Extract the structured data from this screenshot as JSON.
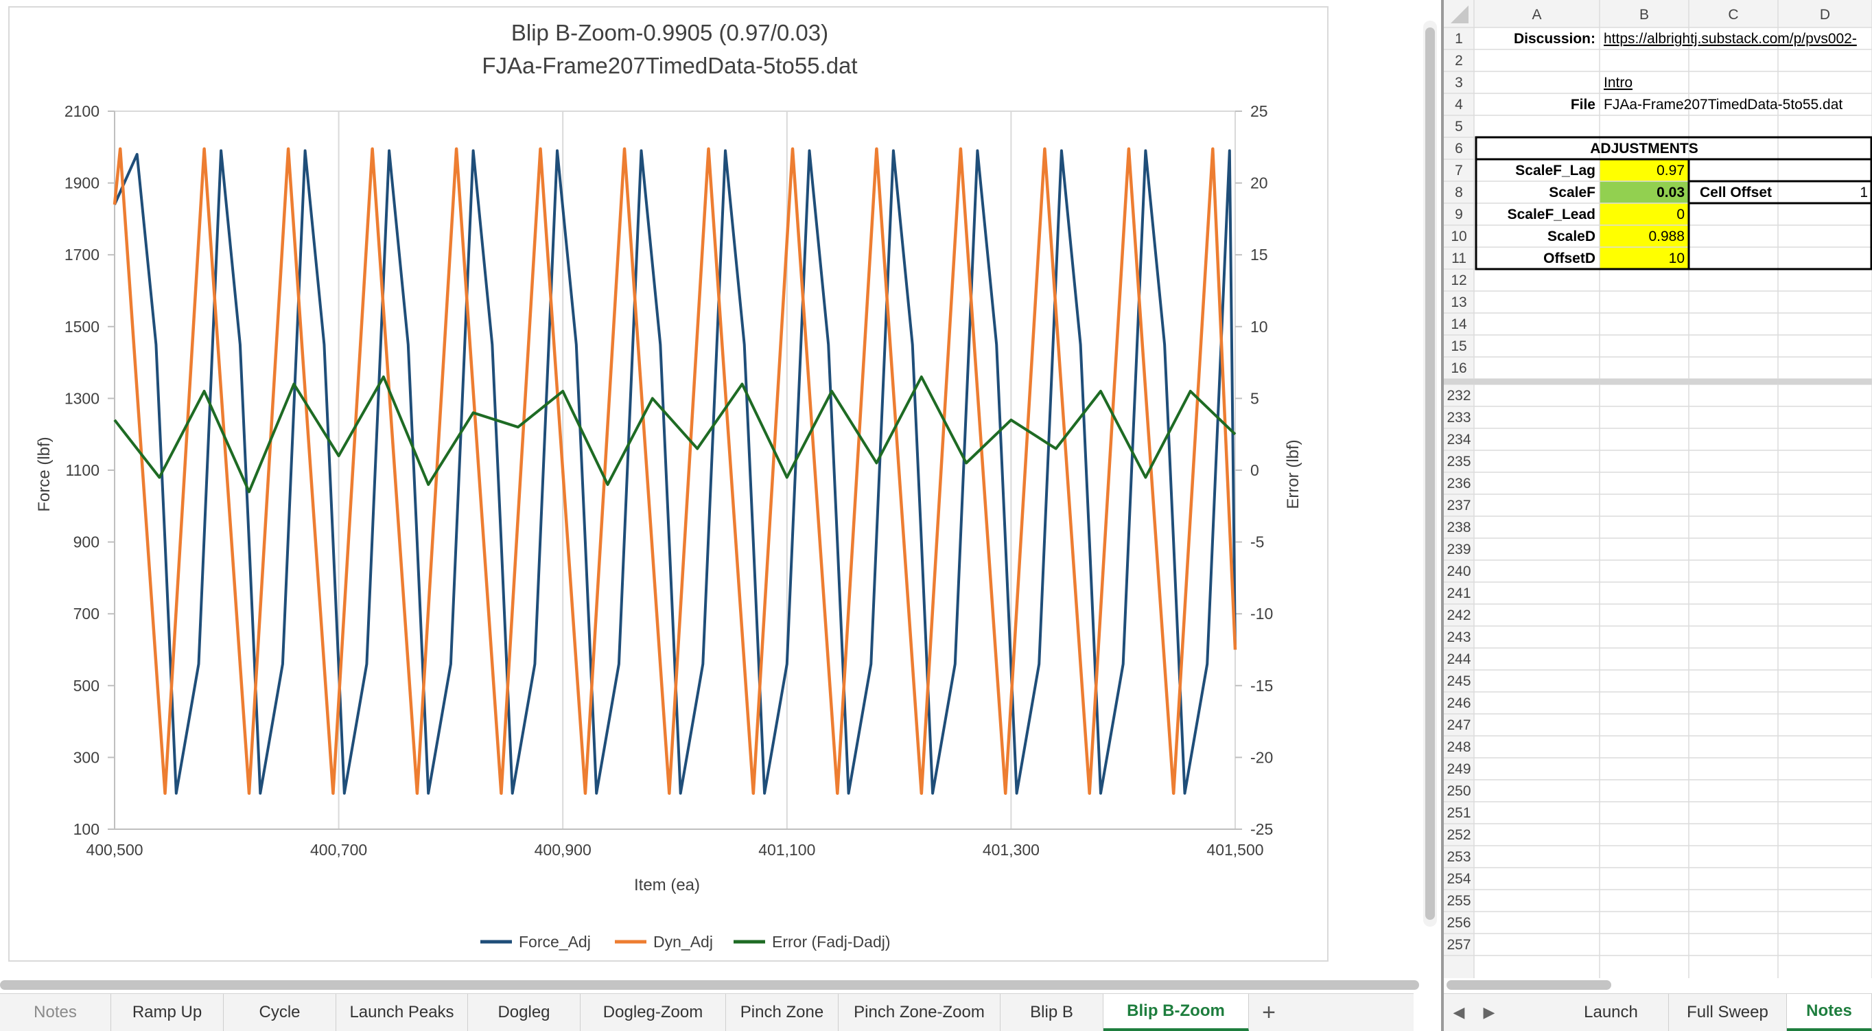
{
  "chart_data": {
    "type": "line",
    "title": "Blip B-Zoom-0.9905 (0.97/0.03)",
    "subtitle": "FJAa-Frame207TimedData-5to55.dat",
    "xlabel": "Item (ea)",
    "ylabel": "Force (lbf)",
    "y2label": "Error (lbf)",
    "xlim": [
      400500,
      401500
    ],
    "ylim": [
      100,
      2100
    ],
    "y2lim": [
      -25,
      25
    ],
    "x_ticks": [
      "400,500",
      "400,700",
      "400,900",
      "401,100",
      "401,300",
      "401,500"
    ],
    "y_ticks": [
      "2100",
      "1900",
      "1700",
      "1500",
      "1300",
      "1100",
      "900",
      "700",
      "500",
      "300",
      "100"
    ],
    "y2_ticks": [
      "25",
      "20",
      "15",
      "10",
      "5",
      "0",
      "-5",
      "-10",
      "-15",
      "-20",
      "-25"
    ],
    "grid": true,
    "legend_position": "bottom",
    "series": [
      {
        "name": "Force_Adj",
        "color": "#1f4e79",
        "axis": "left",
        "x": [
          400500,
          400520,
          400537,
          400545,
          400555,
          400575,
          400595,
          400612,
          400620,
          400630,
          400650,
          400670,
          400687,
          400695,
          400705,
          400725,
          400745,
          400762,
          400770,
          400780,
          400800,
          400820,
          400837,
          400845,
          400855,
          400875,
          400895,
          400912,
          400920,
          400930,
          400950,
          400970,
          400987,
          400995,
          401005,
          401025,
          401045,
          401062,
          401070,
          401080,
          401100,
          401120,
          401137,
          401145,
          401155,
          401175,
          401195,
          401212,
          401220,
          401230,
          401250,
          401270,
          401287,
          401295,
          401305,
          401325,
          401345,
          401362,
          401370,
          401380,
          401400,
          401420,
          401437,
          401445,
          401455,
          401475,
          401495,
          401500
        ],
        "y": [
          1840,
          1980,
          1450,
          900,
          200,
          560,
          1990,
          1450,
          900,
          200,
          560,
          1990,
          1450,
          900,
          200,
          560,
          1990,
          1450,
          900,
          200,
          560,
          1990,
          1450,
          900,
          200,
          560,
          1990,
          1450,
          900,
          200,
          560,
          1990,
          1450,
          900,
          200,
          560,
          1990,
          1450,
          900,
          200,
          560,
          1990,
          1450,
          900,
          200,
          560,
          1990,
          1450,
          900,
          200,
          560,
          1990,
          1450,
          900,
          200,
          560,
          1990,
          1450,
          900,
          200,
          560,
          1990,
          1450,
          900,
          200,
          560,
          1990,
          600
        ]
      },
      {
        "name": "Dyn_Adj",
        "color": "#ed7d31",
        "axis": "left",
        "x": [
          400500,
          400505,
          400545,
          400580,
          400620,
          400655,
          400695,
          400730,
          400770,
          400805,
          400845,
          400880,
          400920,
          400955,
          400995,
          401030,
          401070,
          401105,
          401145,
          401180,
          401220,
          401255,
          401295,
          401330,
          401370,
          401405,
          401445,
          401480,
          401500
        ],
        "y": [
          1840,
          1995,
          200,
          1995,
          200,
          1995,
          200,
          1995,
          200,
          1995,
          200,
          1995,
          200,
          1995,
          200,
          1995,
          200,
          1995,
          200,
          1995,
          200,
          1995,
          200,
          1995,
          200,
          1995,
          200,
          1995,
          600
        ]
      },
      {
        "name": "Error (Fadj-Dadj)",
        "color": "#1e6b24",
        "axis": "right",
        "x": [
          400500,
          400540,
          400580,
          400620,
          400660,
          400700,
          400740,
          400780,
          400820,
          400860,
          400900,
          400940,
          400980,
          401020,
          401060,
          401100,
          401140,
          401180,
          401220,
          401260,
          401300,
          401340,
          401380,
          401420,
          401460,
          401500
        ],
        "y": [
          3.5,
          -0.5,
          5.5,
          -1.5,
          6.0,
          1.0,
          6.5,
          -1.0,
          4.0,
          3.0,
          5.5,
          -1.0,
          5.0,
          1.5,
          6.0,
          -0.5,
          5.5,
          0.5,
          6.5,
          0.5,
          3.5,
          1.5,
          5.5,
          -0.5,
          5.5,
          2.5
        ]
      }
    ]
  },
  "sheet_tabs_left": [
    {
      "label": "Notes",
      "state": "faded"
    },
    {
      "label": "Ramp Up",
      "state": ""
    },
    {
      "label": "Cycle",
      "state": ""
    },
    {
      "label": "Launch Peaks",
      "state": ""
    },
    {
      "label": "Dogleg",
      "state": ""
    },
    {
      "label": "Dogleg-Zoom",
      "state": ""
    },
    {
      "label": "Pinch Zone",
      "state": ""
    },
    {
      "label": "Pinch Zone-Zoom",
      "state": ""
    },
    {
      "label": "Blip B",
      "state": ""
    },
    {
      "label": "Blip B-Zoom",
      "state": "active"
    }
  ],
  "add_sheet_label": "+",
  "sheet_tabs_right": [
    {
      "label": "Launch",
      "state": ""
    },
    {
      "label": "Full Sweep",
      "state": ""
    },
    {
      "label": "Notes",
      "state": "active"
    }
  ],
  "nav_prev_icon": "◀",
  "nav_next_icon": "▶",
  "grid": {
    "columns": [
      "A",
      "B",
      "C",
      "D"
    ],
    "rows_top": [
      "1",
      "2",
      "3",
      "4",
      "5",
      "6",
      "7",
      "8",
      "9",
      "10",
      "11",
      "12",
      "13",
      "14",
      "15",
      "16"
    ],
    "rows_bottom": [
      "232",
      "233",
      "234",
      "235",
      "236",
      "237",
      "238",
      "239",
      "240",
      "241",
      "242",
      "243",
      "244",
      "245",
      "246",
      "247",
      "248",
      "249",
      "250",
      "251",
      "252",
      "253",
      "254",
      "255",
      "256",
      "257"
    ],
    "cells": {
      "a1": "Discussion:",
      "b1": "https://albrightj.substack.com/p/pvs002-",
      "b3": "Intro",
      "a4": "File",
      "b4": "FJAa-Frame207TimedData-5to55.dat",
      "a6": "ADJUSTMENTS",
      "a7": "ScaleF_Lag",
      "b7": "0.97",
      "a8": "ScaleF",
      "b8": "0.03",
      "c8": "Cell Offset",
      "d8": "1",
      "a9": "ScaleF_Lead",
      "b9": "0",
      "a10": "ScaleD",
      "b10": "0.988",
      "a11": "OffsetD",
      "b11": "10"
    },
    "colors": {
      "yellow": "#ffff00",
      "green": "#92d050",
      "link": "#1f5fa0"
    }
  }
}
